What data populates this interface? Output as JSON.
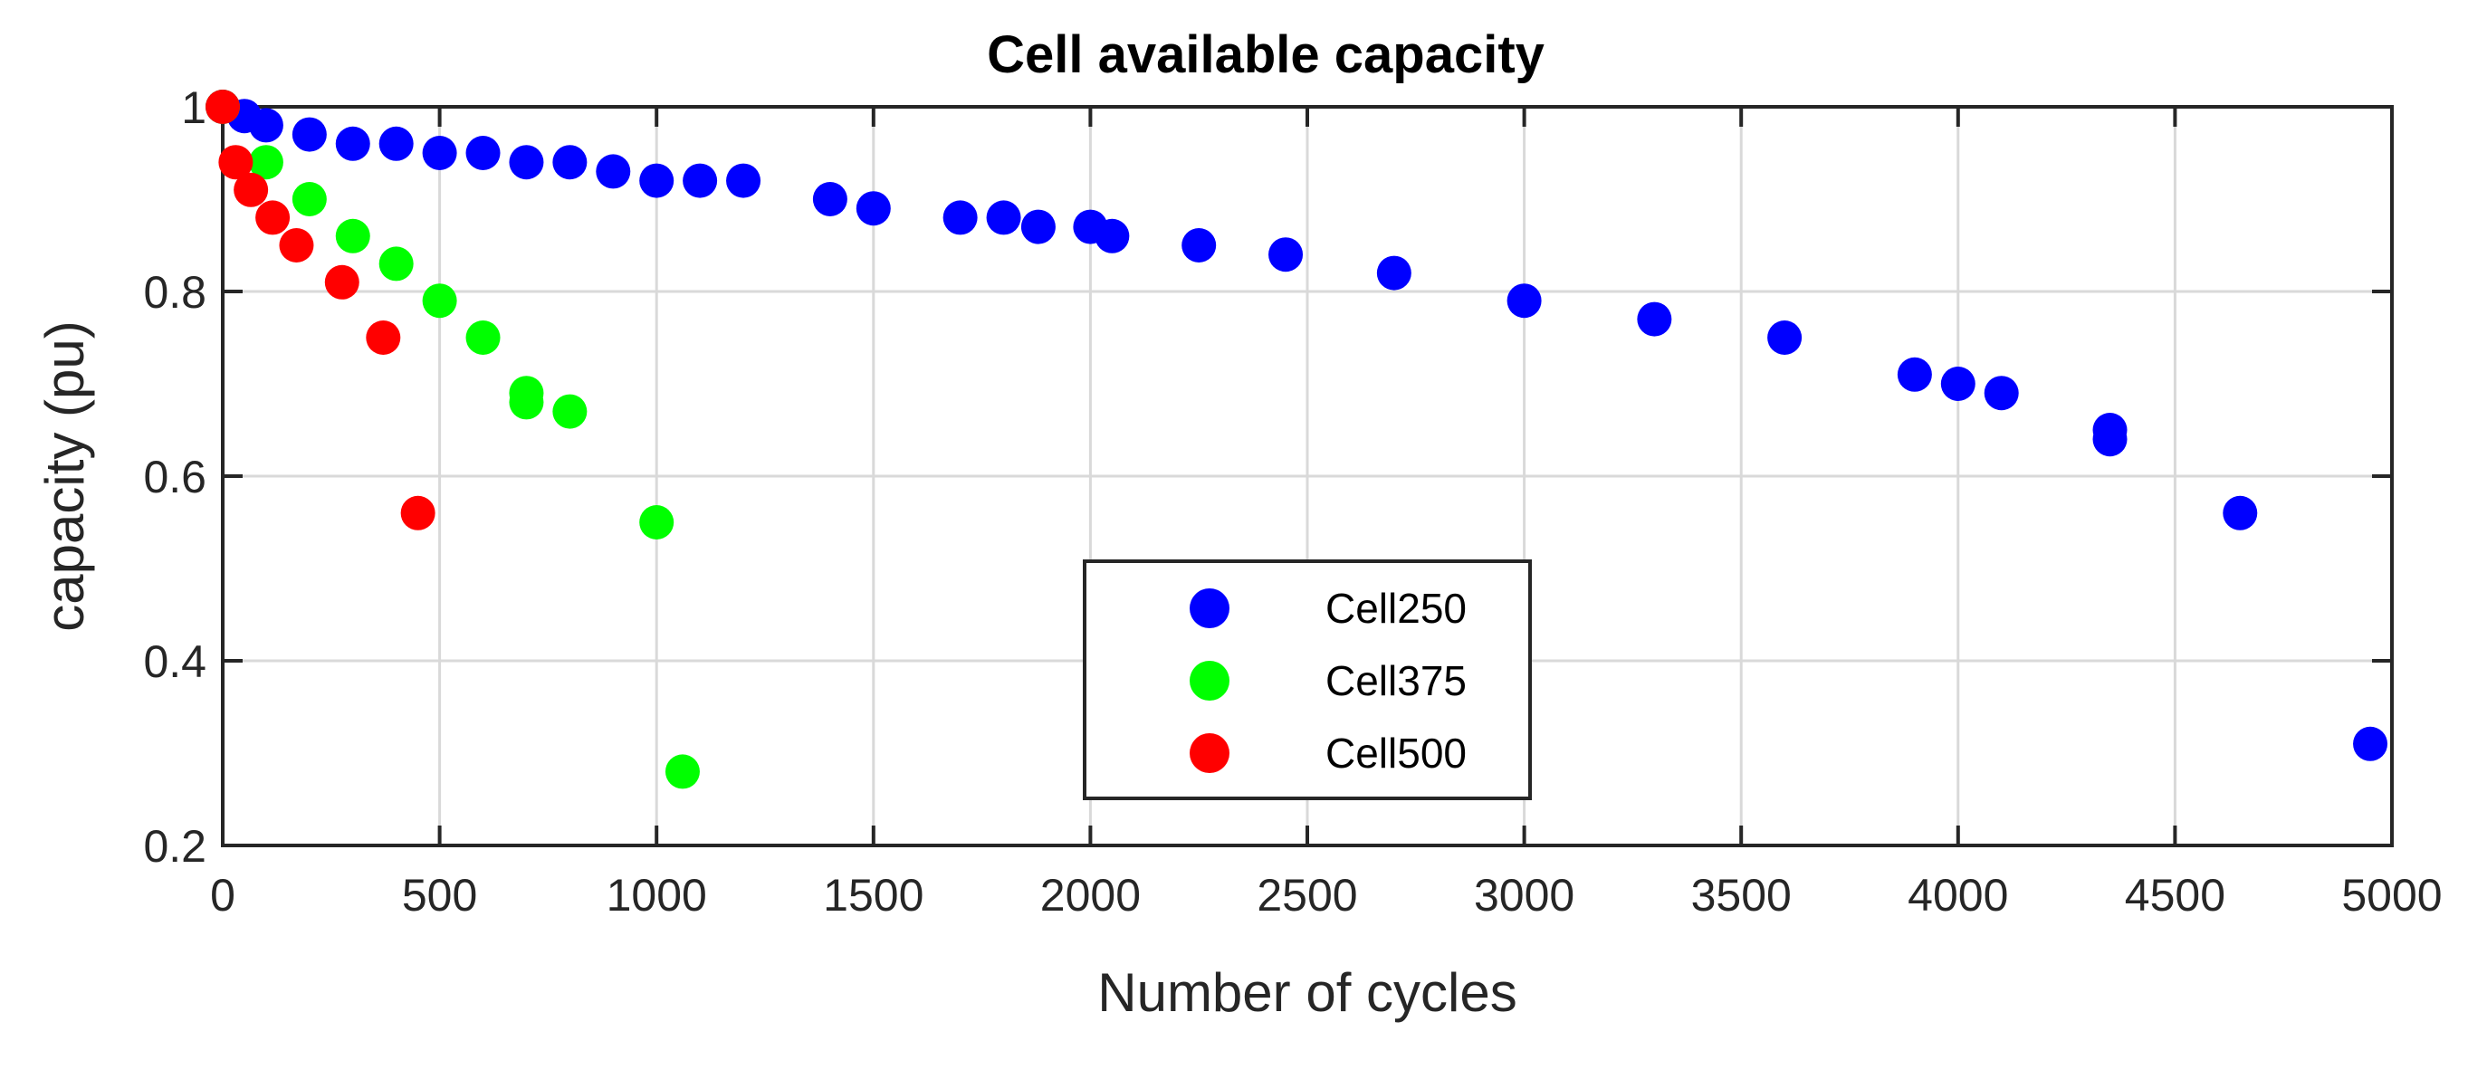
{
  "chart_data": {
    "type": "scatter",
    "title": "Cell available capacity",
    "xlabel": "Number of cycles",
    "ylabel": "capacity (pu)",
    "xlim": [
      0,
      5000
    ],
    "ylim": [
      0.2,
      1
    ],
    "xticks": [
      0,
      500,
      1000,
      1500,
      2000,
      2500,
      3000,
      3500,
      4000,
      4500,
      5000
    ],
    "xtick_labels": [
      "0",
      "500",
      "1000",
      "1500",
      "2000",
      "2500",
      "3000",
      "3500",
      "4000",
      "4500",
      "5000"
    ],
    "yticks": [
      0.2,
      0.4,
      0.6,
      0.8,
      1
    ],
    "ytick_labels": [
      "0.2",
      "0.4",
      "0.6",
      "0.8",
      "1"
    ],
    "grid": true,
    "legend_position": "bottom-center",
    "series": [
      {
        "name": "Cell250",
        "color": "#0000ff",
        "x": [
          0,
          50,
          100,
          200,
          300,
          400,
          500,
          600,
          700,
          800,
          900,
          1000,
          1100,
          1200,
          1400,
          1500,
          1700,
          1800,
          1880,
          2000,
          2050,
          2250,
          2450,
          2700,
          3000,
          3300,
          3600,
          3900,
          4000,
          4100,
          4350,
          4350,
          4650,
          4950
        ],
        "y": [
          1.0,
          0.99,
          0.98,
          0.97,
          0.96,
          0.96,
          0.95,
          0.95,
          0.94,
          0.94,
          0.93,
          0.92,
          0.92,
          0.92,
          0.9,
          0.89,
          0.88,
          0.88,
          0.87,
          0.87,
          0.86,
          0.85,
          0.84,
          0.82,
          0.79,
          0.77,
          0.75,
          0.71,
          0.7,
          0.69,
          0.65,
          0.64,
          0.56,
          0.31
        ]
      },
      {
        "name": "Cell375",
        "color": "#00ff00",
        "x": [
          0,
          100,
          200,
          300,
          400,
          500,
          600,
          700,
          700,
          800,
          1000,
          1060
        ],
        "y": [
          1.0,
          0.94,
          0.9,
          0.86,
          0.83,
          0.79,
          0.75,
          0.69,
          0.68,
          0.67,
          0.55,
          0.28
        ]
      },
      {
        "name": "Cell500",
        "color": "#ff0000",
        "x": [
          0,
          30,
          65,
          115,
          170,
          275,
          370,
          450
        ],
        "y": [
          1.0,
          0.94,
          0.91,
          0.88,
          0.85,
          0.81,
          0.75,
          0.56
        ]
      }
    ]
  }
}
